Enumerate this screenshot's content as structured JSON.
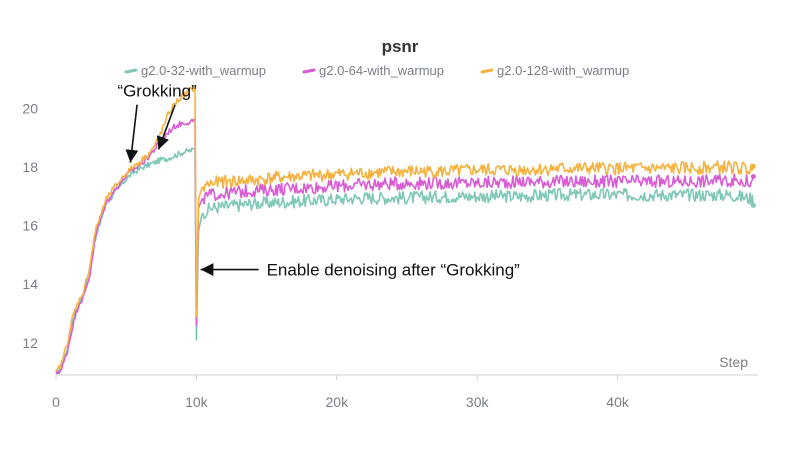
{
  "chart_data": {
    "type": "line",
    "title": "psnr",
    "xlabel": "Step",
    "ylabel": "",
    "xlim": [
      0,
      50000
    ],
    "ylim": [
      10.9,
      20.8
    ],
    "xticks": [
      0,
      10000,
      20000,
      30000,
      40000
    ],
    "xtick_labels": [
      "0",
      "10k",
      "20k",
      "30k",
      "40k"
    ],
    "yticks": [
      12,
      14,
      16,
      18,
      20
    ],
    "ytick_labels": [
      "12",
      "14",
      "16",
      "18",
      "20"
    ],
    "grid": false,
    "legend_position": "top-center",
    "series": [
      {
        "name": "g2.0-32-with_warmup",
        "color": "#7fc8b8",
        "x": [
          0,
          400,
          800,
          1200,
          1600,
          2000,
          2400,
          2800,
          3200,
          3600,
          4000,
          4500,
          5000,
          5500,
          6000,
          6500,
          7000,
          7500,
          8000,
          8500,
          9000,
          9500,
          9900,
          10000,
          10150,
          10400,
          11000,
          12000,
          14000,
          16000,
          18000,
          20000,
          22000,
          25000,
          28000,
          30000,
          33000,
          36000,
          40000,
          44000,
          48000,
          49700
        ],
        "values": [
          10.95,
          11.2,
          11.8,
          12.8,
          13.3,
          13.7,
          14.5,
          15.5,
          16.2,
          16.8,
          17.0,
          17.3,
          17.6,
          17.8,
          17.95,
          18.05,
          18.15,
          18.25,
          18.3,
          18.4,
          18.5,
          18.55,
          18.6,
          12.1,
          15.8,
          16.4,
          16.6,
          16.65,
          16.75,
          16.8,
          16.85,
          16.9,
          16.95,
          16.95,
          17.0,
          17.0,
          17.0,
          17.05,
          17.05,
          17.05,
          17.05,
          16.9
        ]
      },
      {
        "name": "g2.0-64-with_warmup",
        "color": "#d95cd4",
        "x": [
          0,
          400,
          800,
          1200,
          1600,
          2000,
          2400,
          2800,
          3200,
          3600,
          4000,
          4500,
          5000,
          5500,
          6000,
          6500,
          7000,
          7500,
          8000,
          8500,
          9000,
          9500,
          9900,
          10000,
          10150,
          10400,
          11000,
          12000,
          14000,
          16000,
          18000,
          20000,
          22000,
          25000,
          28000,
          30000,
          33000,
          36000,
          40000,
          44000,
          48000,
          49700
        ],
        "values": [
          10.95,
          11.1,
          11.7,
          12.6,
          13.3,
          13.6,
          14.3,
          15.6,
          16.3,
          16.8,
          17.1,
          17.4,
          17.7,
          17.9,
          18.1,
          18.3,
          18.6,
          18.9,
          19.2,
          19.4,
          19.5,
          19.55,
          19.6,
          12.6,
          16.6,
          16.9,
          17.05,
          17.1,
          17.2,
          17.25,
          17.3,
          17.35,
          17.4,
          17.45,
          17.45,
          17.45,
          17.5,
          17.5,
          17.5,
          17.5,
          17.55,
          17.5
        ]
      },
      {
        "name": "g2.0-128-with_warmup",
        "color": "#f5b240",
        "x": [
          0,
          400,
          800,
          1200,
          1600,
          2000,
          2400,
          2800,
          3200,
          3600,
          4000,
          4500,
          5000,
          5500,
          6000,
          6500,
          7000,
          7500,
          8000,
          8500,
          9000,
          9500,
          9900,
          10000,
          10150,
          10400,
          11000,
          12000,
          14000,
          16000,
          18000,
          20000,
          22000,
          25000,
          28000,
          30000,
          33000,
          36000,
          40000,
          44000,
          48000,
          49700
        ],
        "values": [
          10.95,
          11.3,
          12.0,
          12.9,
          13.4,
          13.8,
          14.6,
          15.8,
          16.4,
          16.9,
          17.2,
          17.5,
          17.8,
          18.0,
          18.2,
          18.4,
          18.7,
          19.2,
          19.8,
          20.2,
          20.4,
          20.6,
          20.7,
          12.9,
          16.9,
          17.3,
          17.45,
          17.5,
          17.55,
          17.65,
          17.7,
          17.75,
          17.8,
          17.85,
          17.85,
          17.9,
          17.9,
          17.95,
          17.95,
          17.95,
          18.0,
          17.9
        ]
      }
    ],
    "annotations": [
      {
        "text": "“Grokking”",
        "x": 7200,
        "y": 20.4,
        "arrow_to": [
          [
            5300,
            18.15
          ],
          [
            7300,
            18.6
          ]
        ]
      },
      {
        "text": "Enable denoising after “Grokking”",
        "x": 15000,
        "y": 14.5,
        "arrow_to": [
          [
            10300,
            14.5
          ]
        ]
      }
    ]
  }
}
